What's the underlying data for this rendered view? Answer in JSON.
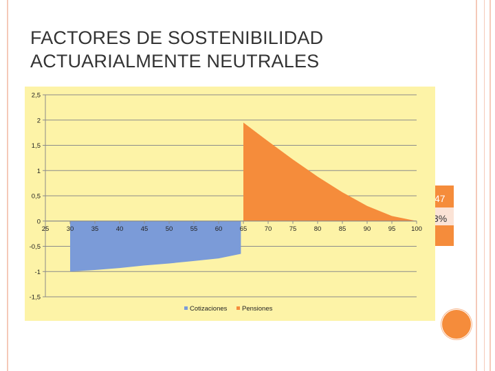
{
  "title_line1": "FACTORES DE SOSTENIBILIDAD",
  "title_line2": "ACTUARIALMENTE NEUTRALES",
  "side_text1": "47",
  "side_text2": "3%",
  "colors": {
    "background_panel": "#fdf3a7",
    "cotizaciones": "#7b9bd8",
    "pensiones": "#f58c3b",
    "accent": "#f58c3b"
  },
  "chart_data": {
    "type": "area",
    "title": "",
    "xlabel": "",
    "ylabel": "",
    "x_ticks": [
      "25",
      "30",
      "35",
      "40",
      "45",
      "50",
      "55",
      "60",
      "65",
      "70",
      "75",
      "80",
      "85",
      "90",
      "95",
      "100"
    ],
    "y_ticks": [
      "2,5",
      "2",
      "1,5",
      "1",
      "0,5",
      "0",
      "-0,5",
      "-1",
      "-1,5"
    ],
    "xlim": [
      25,
      100
    ],
    "ylim": [
      -1.5,
      2.5
    ],
    "grid": true,
    "legend_position": "bottom",
    "series": [
      {
        "name": "Cotizaciones",
        "x": [
          30,
          35,
          40,
          45,
          50,
          55,
          60,
          64.5
        ],
        "values": [
          -1.0,
          -0.97,
          -0.93,
          -0.88,
          -0.84,
          -0.79,
          -0.74,
          -0.65
        ]
      },
      {
        "name": "Pensiones",
        "x": [
          65,
          70,
          75,
          80,
          85,
          90,
          95,
          100
        ],
        "values": [
          1.95,
          1.58,
          1.22,
          0.88,
          0.57,
          0.3,
          0.1,
          0.0
        ]
      }
    ]
  }
}
